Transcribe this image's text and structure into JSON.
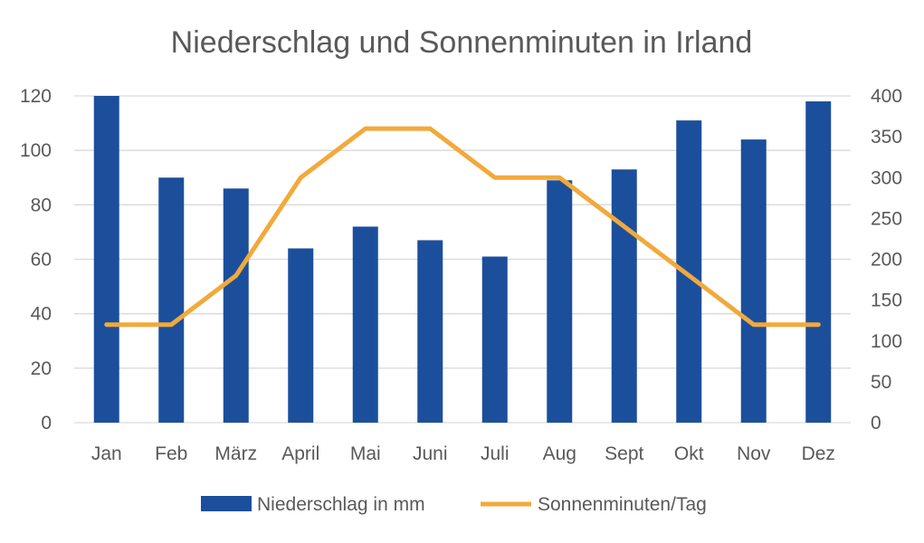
{
  "chart_data": {
    "type": "bar",
    "title": "Niederschlag und Sonnenminuten in Irland",
    "categories": [
      "Jan",
      "Feb",
      "März",
      "April",
      "Mai",
      "Juni",
      "Juli",
      "Aug",
      "Sept",
      "Okt",
      "Nov",
      "Dez"
    ],
    "series": [
      {
        "name": "Niederschlag in mm",
        "type": "bar",
        "axis": "left",
        "color": "#1b4f9c",
        "values": [
          120,
          90,
          86,
          64,
          72,
          67,
          61,
          89,
          93,
          111,
          104,
          118
        ]
      },
      {
        "name": "Sonnenminuten/Tag",
        "type": "line",
        "axis": "right",
        "color": "#f2a93b",
        "values": [
          120,
          120,
          180,
          300,
          360,
          360,
          300,
          300,
          240,
          180,
          120,
          120
        ]
      }
    ],
    "y_left": {
      "ylim": [
        0,
        120
      ],
      "ticks": [
        "0",
        "20",
        "40",
        "60",
        "80",
        "100",
        "120"
      ]
    },
    "y_right": {
      "ylim": [
        0,
        400
      ],
      "ticks": [
        "0",
        "50",
        "100",
        "150",
        "200",
        "250",
        "300",
        "350",
        "400"
      ]
    },
    "grid": true,
    "legend": "bottom",
    "gridline_color": "#d9d9d9"
  }
}
